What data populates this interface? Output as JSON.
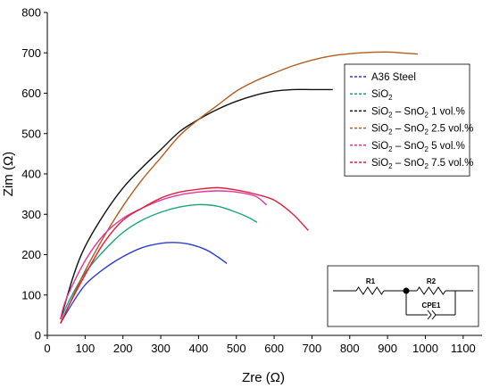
{
  "chart_data": {
    "type": "line",
    "xlabel": "Zre (Ω)",
    "ylabel": "Zim (Ω)",
    "xlim": [
      0,
      1150
    ],
    "ylim": [
      0,
      800
    ],
    "xticks": [
      "0",
      "100",
      "200",
      "300",
      "400",
      "500",
      "600",
      "700",
      "800",
      "900",
      "1000",
      "1100"
    ],
    "yticks": [
      "0",
      "100",
      "200",
      "300",
      "400",
      "500",
      "600",
      "700",
      "800"
    ],
    "grid": false,
    "legend_position": "right",
    "series": [
      {
        "name": "A36 Steel",
        "color": "#2b3fd1",
        "dashed": true,
        "points": [
          [
            35,
            30
          ],
          [
            60,
            70
          ],
          [
            100,
            125
          ],
          [
            150,
            165
          ],
          [
            200,
            195
          ],
          [
            250,
            217
          ],
          [
            300,
            228
          ],
          [
            340,
            230
          ],
          [
            380,
            225
          ],
          [
            420,
            212
          ],
          [
            450,
            195
          ],
          [
            475,
            178
          ]
        ]
      },
      {
        "name": "SiO",
        "sub": "2",
        "color": "#1aa67a",
        "dashed": true,
        "points": [
          [
            35,
            40
          ],
          [
            60,
            90
          ],
          [
            100,
            155
          ],
          [
            150,
            210
          ],
          [
            200,
            255
          ],
          [
            250,
            285
          ],
          [
            300,
            305
          ],
          [
            350,
            318
          ],
          [
            400,
            324
          ],
          [
            450,
            320
          ],
          [
            500,
            305
          ],
          [
            530,
            293
          ],
          [
            555,
            280
          ]
        ]
      },
      {
        "name": "SiO",
        "sub": "2",
        "suffix": " – SnO",
        "sub2": "2",
        "rest": " 1 vol.%",
        "color": "#111111",
        "dashed": true,
        "points": [
          [
            35,
            40
          ],
          [
            70,
            150
          ],
          [
            100,
            220
          ],
          [
            150,
            300
          ],
          [
            200,
            365
          ],
          [
            250,
            415
          ],
          [
            300,
            460
          ],
          [
            350,
            505
          ],
          [
            400,
            535
          ],
          [
            450,
            560
          ],
          [
            500,
            580
          ],
          [
            550,
            595
          ],
          [
            600,
            605
          ],
          [
            650,
            609
          ],
          [
            700,
            609
          ],
          [
            755,
            609
          ]
        ]
      },
      {
        "name": "SiO",
        "sub": "2",
        "suffix": " – SnO",
        "sub2": "2",
        "rest": " 2.5 vol.%",
        "color": "#b35c1e",
        "dashed": true,
        "points": [
          [
            35,
            30
          ],
          [
            60,
            80
          ],
          [
            100,
            160
          ],
          [
            150,
            245
          ],
          [
            200,
            320
          ],
          [
            250,
            385
          ],
          [
            300,
            440
          ],
          [
            350,
            495
          ],
          [
            400,
            535
          ],
          [
            450,
            570
          ],
          [
            500,
            605
          ],
          [
            550,
            630
          ],
          [
            600,
            650
          ],
          [
            650,
            668
          ],
          [
            700,
            682
          ],
          [
            750,
            692
          ],
          [
            800,
            698
          ],
          [
            850,
            701
          ],
          [
            900,
            702
          ],
          [
            950,
            699
          ],
          [
            980,
            697
          ]
        ]
      },
      {
        "name": "SiO",
        "sub": "2",
        "suffix": " – SnO",
        "sub2": "2",
        "rest": " 5 vol.%",
        "color": "#e0389a",
        "dashed": true,
        "points": [
          [
            35,
            40
          ],
          [
            50,
            90
          ],
          [
            100,
            185
          ],
          [
            150,
            250
          ],
          [
            200,
            290
          ],
          [
            250,
            315
          ],
          [
            300,
            335
          ],
          [
            350,
            348
          ],
          [
            400,
            355
          ],
          [
            450,
            358
          ],
          [
            500,
            355
          ],
          [
            550,
            345
          ],
          [
            580,
            323
          ]
        ]
      },
      {
        "name": "SiO",
        "sub": "2",
        "suffix": " – SnO",
        "sub2": "2",
        "rest": " 7.5 vol.%",
        "color": "#e01f3a",
        "dashed": true,
        "points": [
          [
            35,
            30
          ],
          [
            60,
            80
          ],
          [
            100,
            150
          ],
          [
            150,
            230
          ],
          [
            200,
            285
          ],
          [
            250,
            315
          ],
          [
            300,
            340
          ],
          [
            350,
            355
          ],
          [
            400,
            362
          ],
          [
            450,
            366
          ],
          [
            500,
            360
          ],
          [
            550,
            350
          ],
          [
            600,
            335
          ],
          [
            650,
            300
          ],
          [
            690,
            260
          ]
        ]
      }
    ],
    "circuit": {
      "r1": "R1",
      "r2": "R2",
      "cpe": "CPE1"
    }
  }
}
